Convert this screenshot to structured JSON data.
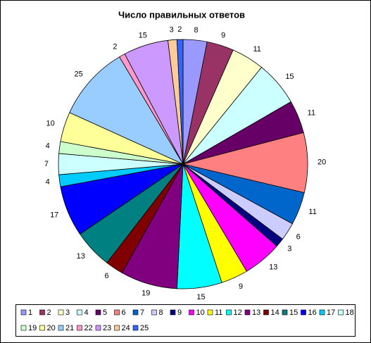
{
  "chart_data": {
    "type": "pie",
    "title": "Число правильных ответов",
    "categories": [
      "1",
      "2",
      "3",
      "4",
      "5",
      "6",
      "7",
      "8",
      "9",
      "10",
      "11",
      "12",
      "13",
      "14",
      "15",
      "16",
      "17",
      "18",
      "19",
      "20",
      "21",
      "22",
      "23",
      "24",
      "25"
    ],
    "values": [
      8,
      9,
      11,
      15,
      11,
      20,
      11,
      6,
      3,
      13,
      9,
      15,
      19,
      6,
      13,
      17,
      4,
      7,
      4,
      10,
      25,
      2,
      15,
      3,
      2
    ],
    "colors": [
      "#9999FF",
      "#993366",
      "#FFFFCC",
      "#CCFFFF",
      "#660066",
      "#FF8080",
      "#0066CC",
      "#CCCCFF",
      "#000080",
      "#FF00FF",
      "#FFFF00",
      "#00FFFF",
      "#800080",
      "#800000",
      "#008080",
      "#0000FF",
      "#00CCFF",
      "#CCFFFF",
      "#CCFFCC",
      "#FFFF99",
      "#99CCFF",
      "#FF99CC",
      "#CC99FF",
      "#FFCC99",
      "#3366FF"
    ],
    "legend": "bottom"
  }
}
